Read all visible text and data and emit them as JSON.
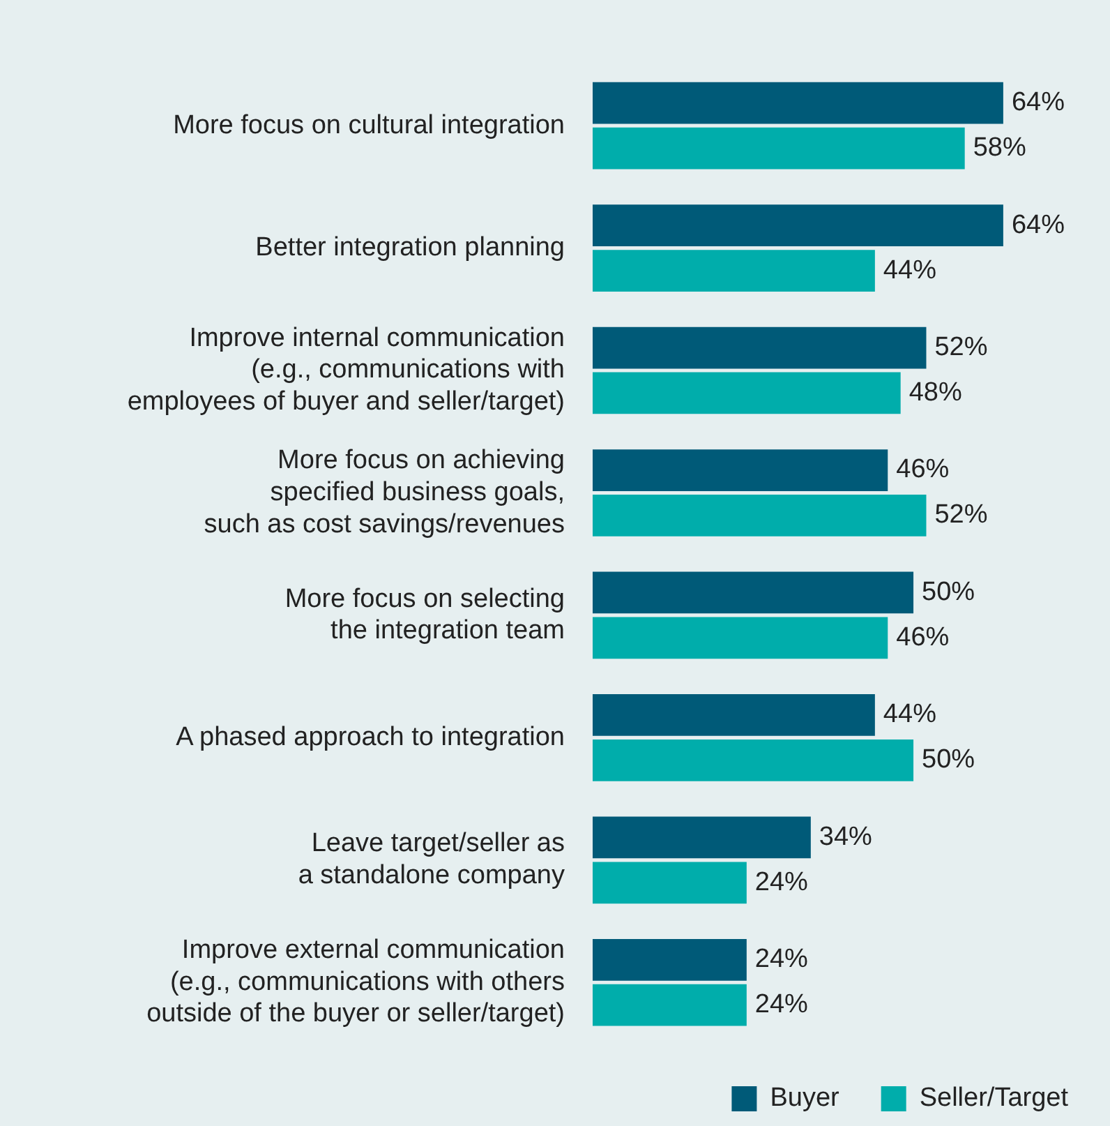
{
  "chart_data": {
    "type": "bar",
    "orientation": "horizontal",
    "legend": "bottom right",
    "categories": [
      "More focus on cultural integration",
      "Better integration planning",
      "Improve internal communication\n(e.g., communications with\nemployees of buyer and seller/target)",
      "More focus on achieving\nspecified business goals,\nsuch as cost savings/revenues",
      "More focus on selecting\nthe integration team",
      "A phased approach to integration",
      "Leave target/seller as\na standalone company",
      "Improve external communication\n(e.g., communications with others\noutside of the buyer or seller/target)"
    ],
    "series": [
      {
        "name": "Buyer",
        "color": "#005a78",
        "values": [
          64,
          64,
          52,
          46,
          50,
          44,
          34,
          24
        ],
        "value_labels": [
          "64%",
          "64%",
          "52%",
          "46%",
          "50%",
          "44%",
          "34%",
          "24%"
        ]
      },
      {
        "name": "Seller/Target",
        "color": "#00adab",
        "values": [
          58,
          44,
          48,
          52,
          46,
          50,
          24,
          24
        ],
        "value_labels": [
          "58%",
          "44%",
          "48%",
          "52%",
          "46%",
          "50%",
          "24%",
          "24%"
        ]
      }
    ]
  }
}
